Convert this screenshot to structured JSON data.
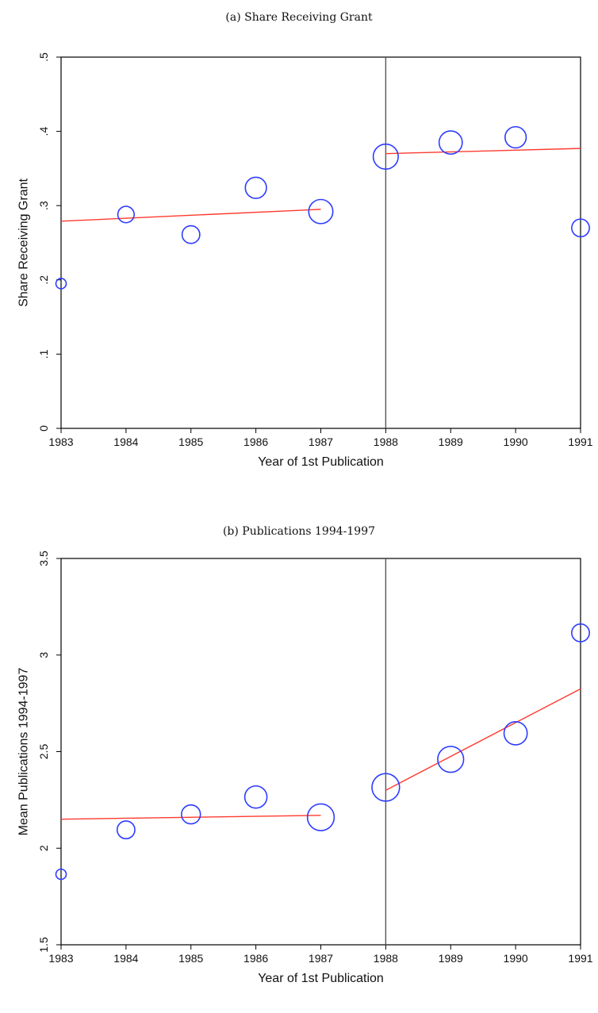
{
  "chart_data": [
    {
      "type": "scatter",
      "title": "(a) Share Receiving Grant",
      "xlabel": "Year of 1st Publication",
      "ylabel": "Share Receiving Grant",
      "xlim": [
        1983,
        1991
      ],
      "ylim": [
        0,
        0.5
      ],
      "x_ticks": [
        "1983",
        "1984",
        "1985",
        "1986",
        "1987",
        "1988",
        "1989",
        "1990",
        "1991"
      ],
      "y_ticks": [
        {
          "value": 0,
          "label": "0"
        },
        {
          "value": 0.1,
          "label": ".1"
        },
        {
          "value": 0.2,
          "label": ".2"
        },
        {
          "value": 0.3,
          "label": ".3"
        },
        {
          "value": 0.4,
          "label": ".4"
        },
        {
          "value": 0.5,
          "label": ".5"
        }
      ],
      "cutoff_x": 1988,
      "points": [
        {
          "x": 1983,
          "y": 0.195,
          "size": 1.0
        },
        {
          "x": 1984,
          "y": 0.288,
          "size": 1.2
        },
        {
          "x": 1985,
          "y": 0.261,
          "size": 1.4
        },
        {
          "x": 1986,
          "y": 0.324,
          "size": 2.0
        },
        {
          "x": 1987,
          "y": 0.292,
          "size": 2.6
        },
        {
          "x": 1988,
          "y": 0.366,
          "size": 2.8
        },
        {
          "x": 1989,
          "y": 0.385,
          "size": 2.4
        },
        {
          "x": 1990,
          "y": 0.392,
          "size": 2.0
        },
        {
          "x": 1991,
          "y": 0.27,
          "size": 1.4
        }
      ],
      "fit_lines": [
        {
          "x": [
            1983,
            1987
          ],
          "y": [
            0.279,
            0.295
          ]
        },
        {
          "x": [
            1988,
            1991
          ],
          "y": [
            0.37,
            0.377
          ]
        }
      ],
      "marker_color": "#2d3cff",
      "fit_color": "#ff3b30",
      "cutoff_color": "#555555",
      "grid": false
    },
    {
      "type": "scatter",
      "title": "(b) Publications 1994-1997",
      "xlabel": "Year of 1st Publication",
      "ylabel": "Mean Publications 1994-1997",
      "xlim": [
        1983,
        1991
      ],
      "ylim": [
        1.5,
        3.5
      ],
      "x_ticks": [
        "1983",
        "1984",
        "1985",
        "1986",
        "1987",
        "1988",
        "1989",
        "1990",
        "1991"
      ],
      "y_ticks": [
        {
          "value": 1.5,
          "label": "1.5"
        },
        {
          "value": 2,
          "label": "2"
        },
        {
          "value": 2.5,
          "label": "2.5"
        },
        {
          "value": 3,
          "label": "3"
        },
        {
          "value": 3.5,
          "label": "3.5"
        }
      ],
      "cutoff_x": 1988,
      "points": [
        {
          "x": 1983,
          "y": 1.865,
          "size": 1.0
        },
        {
          "x": 1984,
          "y": 2.095,
          "size": 1.4
        },
        {
          "x": 1985,
          "y": 2.175,
          "size": 1.6
        },
        {
          "x": 1986,
          "y": 2.265,
          "size": 2.2
        },
        {
          "x": 1987,
          "y": 2.16,
          "size": 3.2
        },
        {
          "x": 1988,
          "y": 2.315,
          "size": 3.4
        },
        {
          "x": 1989,
          "y": 2.46,
          "size": 3.0
        },
        {
          "x": 1990,
          "y": 2.595,
          "size": 2.4
        },
        {
          "x": 1991,
          "y": 3.115,
          "size": 1.4
        }
      ],
      "fit_lines": [
        {
          "x": [
            1983,
            1987
          ],
          "y": [
            2.15,
            2.17
          ]
        },
        {
          "x": [
            1988,
            1991
          ],
          "y": [
            2.3,
            2.825
          ]
        }
      ],
      "marker_color": "#2d3cff",
      "fit_color": "#ff3b30",
      "cutoff_color": "#555555",
      "grid": false
    }
  ]
}
